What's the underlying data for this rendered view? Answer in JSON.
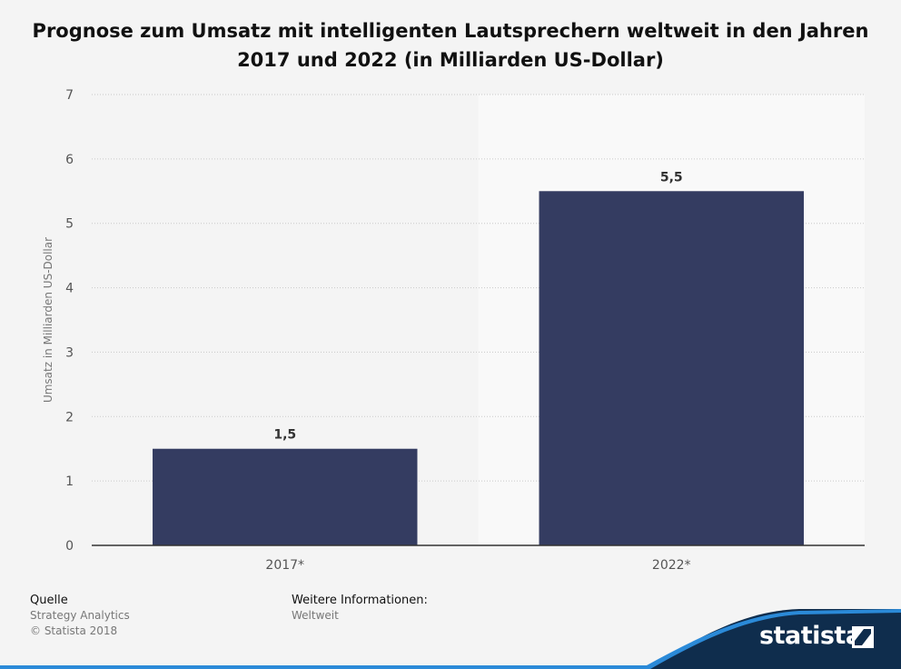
{
  "chart_data": {
    "type": "bar",
    "title": "Prognose zum Umsatz mit intelligenten Lautsprechern weltweit in den Jahren 2017 und 2022 (in Milliarden US-Dollar)",
    "categories": [
      "2017*",
      "2022*"
    ],
    "values": [
      1.5,
      5.5
    ],
    "value_labels": [
      "1,5",
      "5,5"
    ],
    "ylabel": "Umsatz in Milliarden US-Dollar",
    "xlabel": "",
    "ylim": [
      0,
      7
    ],
    "yticks": [
      "0",
      "1",
      "2",
      "3",
      "4",
      "5",
      "6",
      "7"
    ],
    "grid": true,
    "bar_color": "#343c61"
  },
  "footer": {
    "source_heading": "Quelle",
    "source_name": "Strategy Analytics",
    "copyright": "© Statista 2018",
    "info_heading": "Weitere Informationen:",
    "info_value": "Weltweit"
  },
  "logo": {
    "text": "statista"
  },
  "colors": {
    "brand_dark": "#0f2d4d",
    "brand_blue": "#2b8ad8"
  }
}
